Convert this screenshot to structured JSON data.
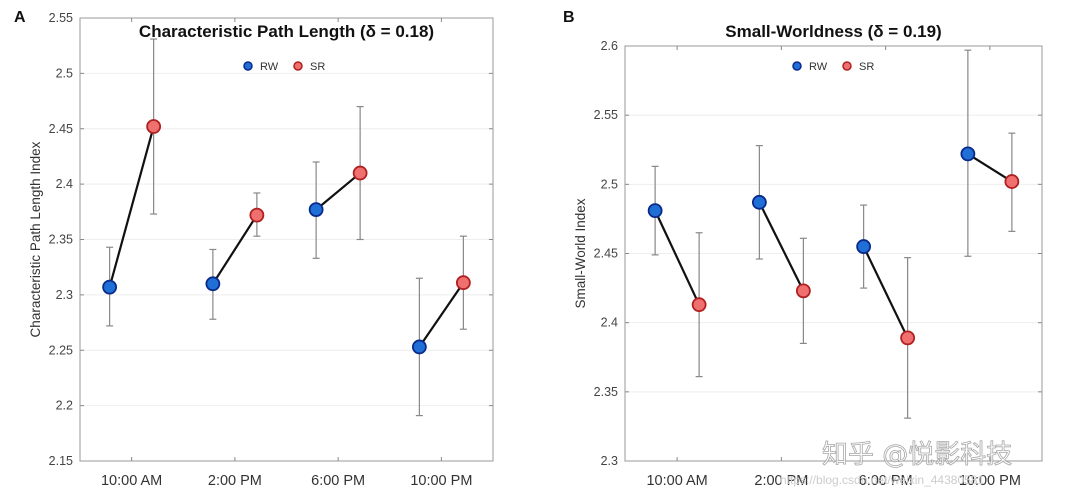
{
  "chart_data": [
    {
      "type": "scatter",
      "panel": "A",
      "title": "Characteristic Path Length (δ = 0.18)",
      "xlabel": "",
      "ylabel": "Characteristic Path Length Index",
      "ylim": [
        2.15,
        2.55
      ],
      "yticks": [
        "2.15",
        "2.2",
        "2.25",
        "2.3",
        "2.35",
        "2.4",
        "2.45",
        "2.5",
        "2.55"
      ],
      "categories": [
        "10:00 AM",
        "2:00 PM",
        "6:00 PM",
        "10:00 PM"
      ],
      "grid": true,
      "legend": "top-center",
      "series": [
        {
          "name": "RW",
          "color": "#1f6fd6",
          "edge": "#0a2a8a",
          "values": [
            2.307,
            2.31,
            2.377,
            2.253
          ],
          "err_low": [
            2.272,
            2.278,
            2.333,
            2.191
          ],
          "err_high": [
            2.343,
            2.341,
            2.42,
            2.315
          ]
        },
        {
          "name": "SR",
          "color": "#f07070",
          "edge": "#b02020",
          "values": [
            2.452,
            2.372,
            2.41,
            2.311
          ],
          "err_low": [
            2.373,
            2.353,
            2.35,
            2.269
          ],
          "err_high": [
            2.531,
            2.392,
            2.47,
            2.353
          ]
        }
      ]
    },
    {
      "type": "scatter",
      "panel": "B",
      "title": "Small-Worldness (δ = 0.19)",
      "xlabel": "",
      "ylabel": "Small-World Index",
      "ylim": [
        2.3,
        2.6
      ],
      "yticks": [
        "2.3",
        "2.35",
        "2.4",
        "2.45",
        "2.5",
        "2.55",
        "2.6"
      ],
      "categories": [
        "10:00 AM",
        "2:00 PM",
        "6:00 PM",
        "10:00 PM"
      ],
      "grid": true,
      "legend": "top-center",
      "series": [
        {
          "name": "RW",
          "color": "#1f6fd6",
          "edge": "#0a2a8a",
          "values": [
            2.481,
            2.487,
            2.455,
            2.522
          ],
          "err_low": [
            2.449,
            2.446,
            2.425,
            2.448
          ],
          "err_high": [
            2.513,
            2.528,
            2.485,
            2.597
          ]
        },
        {
          "name": "SR",
          "color": "#f07070",
          "edge": "#b02020",
          "values": [
            2.413,
            2.423,
            2.389,
            2.502
          ],
          "err_low": [
            2.361,
            2.385,
            2.331,
            2.466
          ],
          "err_high": [
            2.465,
            2.461,
            2.447,
            2.537
          ]
        }
      ]
    }
  ],
  "watermark": {
    "text": "知乎 @悦影科技",
    "url": "https://blog.csdn.net/weixin_44380581"
  }
}
